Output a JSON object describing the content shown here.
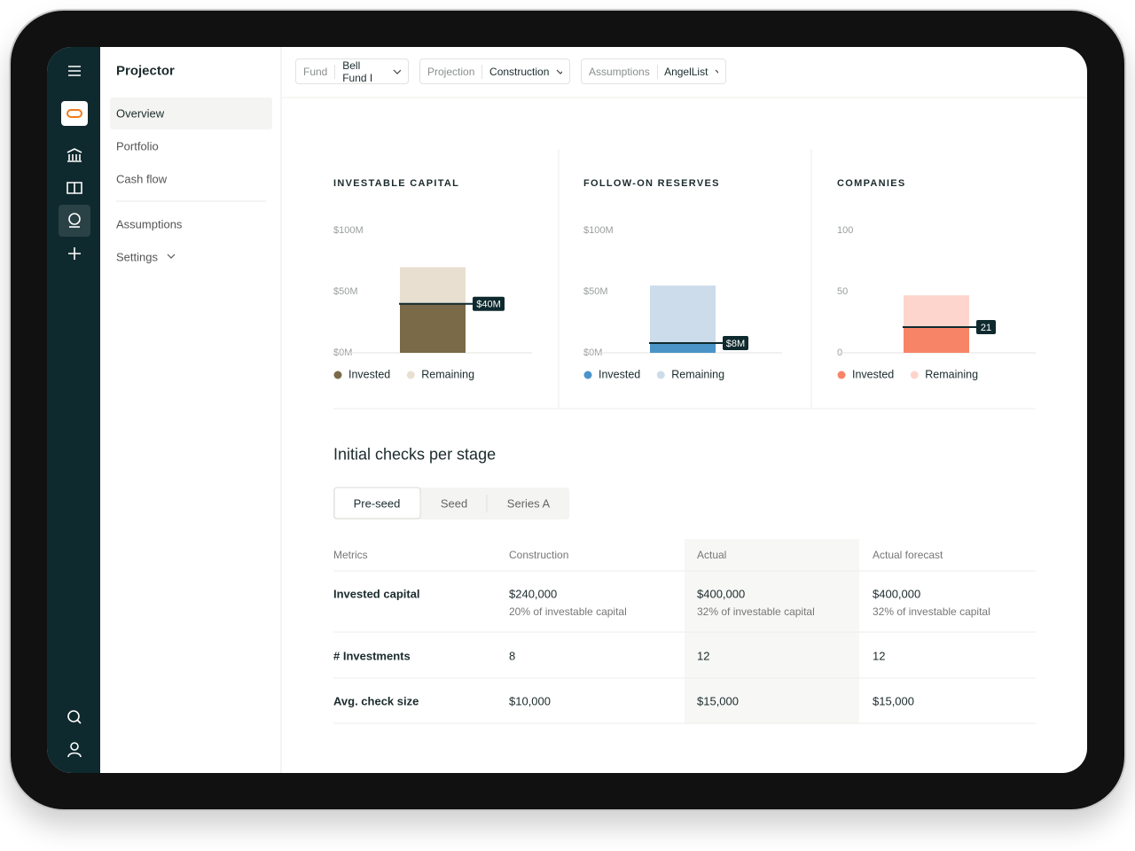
{
  "app_title": "Projector",
  "nav": [
    "Overview",
    "Portfolio",
    "Cash flow",
    "Assumptions",
    "Settings"
  ],
  "filters": [
    {
      "label": "Fund",
      "value": "Bell Fund I"
    },
    {
      "label": "Projection",
      "value": "Construction"
    },
    {
      "label": "Assumptions",
      "value": "AngelList"
    }
  ],
  "chart_data": [
    {
      "type": "bar",
      "stacked": true,
      "title": "INVESTABLE CAPITAL",
      "categories": [
        null
      ],
      "ylim": [
        0,
        100
      ],
      "yticks": [
        {
          "value": 0,
          "label": "$0M"
        },
        {
          "value": 50,
          "label": "$50M"
        },
        {
          "value": 100,
          "label": "$100M"
        }
      ],
      "series": [
        {
          "name": "Invested",
          "color": "#7a6a48",
          "values": [
            40
          ],
          "value_labels": [
            "$40M"
          ]
        },
        {
          "name": "Remaining",
          "color": "#e8dfd0",
          "values": [
            30
          ]
        }
      ]
    },
    {
      "type": "bar",
      "stacked": true,
      "title": "FOLLOW-ON RESERVES",
      "categories": [
        null
      ],
      "ylim": [
        0,
        100
      ],
      "yticks": [
        {
          "value": 0,
          "label": "$0M"
        },
        {
          "value": 50,
          "label": "$50M"
        },
        {
          "value": 100,
          "label": "$100M"
        }
      ],
      "series": [
        {
          "name": "Invested",
          "color": "#4a94c8",
          "values": [
            8
          ],
          "value_labels": [
            "$8M"
          ]
        },
        {
          "name": "Remaining",
          "color": "#cddcea",
          "values": [
            47
          ]
        }
      ]
    },
    {
      "type": "bar",
      "stacked": true,
      "title": "COMPANIES",
      "categories": [
        null
      ],
      "ylim": [
        0,
        100
      ],
      "yticks": [
        0,
        50,
        100
      ],
      "series": [
        {
          "name": "Invested",
          "color": "#f88467",
          "values": [
            21
          ]
        },
        {
          "name": "Remaining",
          "color": "#fdd5cc",
          "values": [
            26
          ]
        }
      ]
    }
  ],
  "section_title": "Initial checks per stage",
  "tabs": [
    "Pre-seed",
    "Seed",
    "Series A"
  ],
  "table": {
    "headers": [
      "Metrics",
      "Construction",
      "Actual",
      "Actual forecast"
    ],
    "rows": [
      {
        "label": "Invested capital",
        "cells": [
          {
            "text": "$240,000",
            "note": "20% of investable capital"
          },
          {
            "text": "$400,000",
            "note": "32% of investable capital"
          },
          {
            "text": "$400,000",
            "note": "32% of investable capital"
          }
        ]
      },
      {
        "label": "# Investments",
        "cells": [
          {
            "text": "8"
          },
          {
            "text": "12"
          },
          {
            "text": "12"
          }
        ]
      },
      {
        "label": "Avg. check size",
        "cells": [
          {
            "text": "$10,000"
          },
          {
            "text": "$15,000"
          },
          {
            "text": "$15,000"
          }
        ]
      }
    ]
  }
}
